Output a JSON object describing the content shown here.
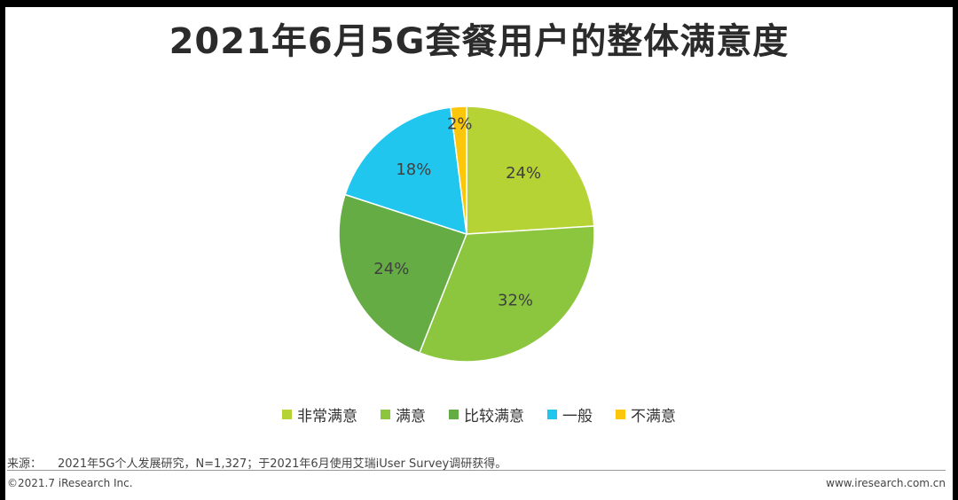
{
  "title": "2021年6月5G套餐用户的整体满意度",
  "chart_data": {
    "type": "pie",
    "categories": [
      "非常满意",
      "满意",
      "比较满意",
      "一般",
      "不满意"
    ],
    "values": [
      24,
      32,
      24,
      18,
      2
    ],
    "labels": [
      "24%",
      "32%",
      "24%",
      "18%",
      "2%"
    ],
    "colors": [
      "#b5d334",
      "#8cc63e",
      "#66ac44",
      "#21c6ef",
      "#fcc60b"
    ],
    "start": "12 o'clock, clockwise",
    "legend_position": "bottom"
  },
  "source": {
    "label": "来源：",
    "text": "2021年5G个人发展研究，N=1,327；于2021年6月使用艾瑞iUser Survey调研获得。"
  },
  "footer": {
    "copyright": "©2021.7 iResearch Inc.",
    "website": "www.iresearch.com.cn"
  }
}
